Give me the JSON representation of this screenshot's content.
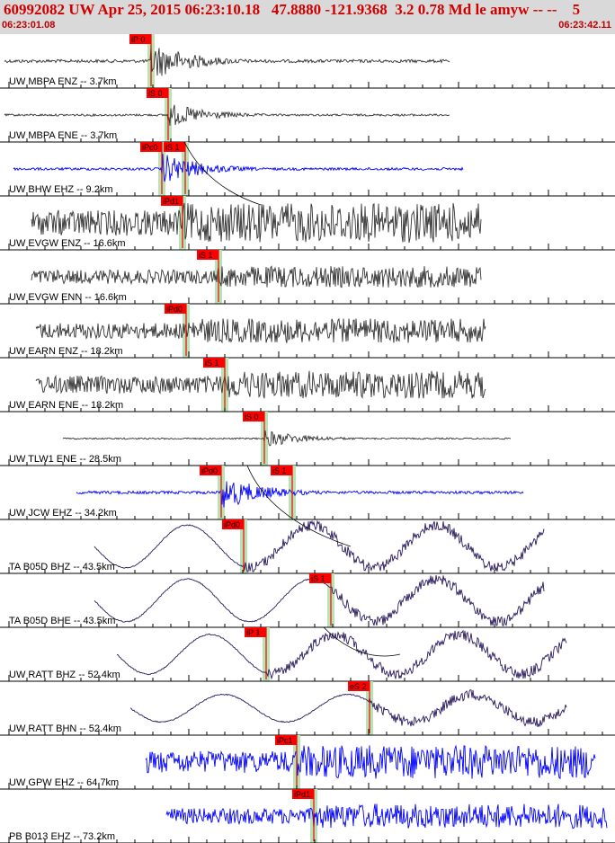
{
  "header": {
    "title": "60992082 UW Apr 25, 2015 06:23:10.18   47.8880 -121.9368  3.2 0.78 Md le amyw -- --    5",
    "start_time": "06:23:01.08",
    "end_time": "06:23:42.11"
  },
  "colors": {
    "header_bg": "#d9d9d9",
    "header_text": "#d00000",
    "pick_flag": "#ff0000",
    "pick_window": "#b7e4b7",
    "trace_dark": "#333333",
    "trace_blue": "#0000ff",
    "trace_navy": "#2a1a5e"
  },
  "channels": [
    {
      "label": "UW MBPA ENZ -- 3.7km",
      "color": "dark",
      "wave": "burst",
      "picks": [
        {
          "label": "iP 0"
        }
      ]
    },
    {
      "label": "UW MBPA ENE -- 3.7km",
      "color": "dark",
      "wave": "burst",
      "picks": [
        {
          "label": "iS 0"
        }
      ]
    },
    {
      "label": "UW BHW EHZ -- 9.2km",
      "color": "blue",
      "wave": "burst",
      "picks": [
        {
          "label": "iPc0"
        },
        {
          "label": "iS 1"
        }
      ]
    },
    {
      "label": "UW EVGW ENZ -- 16.6km",
      "color": "dark",
      "wave": "noise",
      "picks": [
        {
          "label": "iPd1"
        }
      ]
    },
    {
      "label": "UW EVGW ENN -- 16.6km",
      "color": "dark",
      "wave": "noise",
      "picks": [
        {
          "label": "iS 1"
        }
      ]
    },
    {
      "label": "UW EARN ENZ -- 18.2km",
      "color": "dark",
      "wave": "noise",
      "picks": [
        {
          "label": "iPd0"
        }
      ]
    },
    {
      "label": "UW EARN ENE -- 18.2km",
      "color": "dark",
      "wave": "noise",
      "picks": [
        {
          "label": "iS 1"
        }
      ]
    },
    {
      "label": "UW TLW1 ENE -- 28.5km",
      "color": "dark",
      "wave": "burst",
      "picks": [
        {
          "label": "iS 0"
        }
      ]
    },
    {
      "label": "UW JCW EHZ -- 34.2km",
      "color": "blue",
      "wave": "burst",
      "picks": [
        {
          "label": "iPd0"
        },
        {
          "label": "iS 1"
        }
      ]
    },
    {
      "label": "TA B05D BHZ -- 43.5km",
      "color": "navy",
      "wave": "swell",
      "picks": [
        {
          "label": "iPd0"
        }
      ]
    },
    {
      "label": "TA B05D BHE -- 43.5km",
      "color": "navy",
      "wave": "swell",
      "picks": [
        {
          "label": "iS 1"
        }
      ]
    },
    {
      "label": "UW RATT BHZ -- 52.4km",
      "color": "navy",
      "wave": "swell",
      "picks": [
        {
          "label": "iP 1"
        }
      ]
    },
    {
      "label": "UW RATT BHN -- 52.4km",
      "color": "navy",
      "wave": "swell",
      "picks": [
        {
          "label": "eS 2"
        }
      ]
    },
    {
      "label": "UW GPW EHZ -- 64.7km",
      "color": "blue",
      "wave": "noise",
      "picks": [
        {
          "label": "iPc1"
        }
      ]
    },
    {
      "label": "PB B013 EHZ -- 73.2km",
      "color": "blue",
      "wave": "noise",
      "picks": [
        {
          "label": "iPd1"
        }
      ]
    }
  ]
}
